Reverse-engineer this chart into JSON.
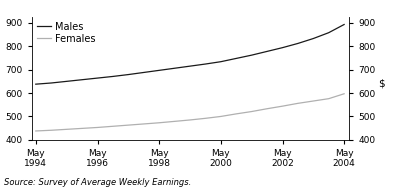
{
  "title": "",
  "ylabel_right": "$",
  "source": "Source: Survey of Average Weekly Earnings.",
  "xlim_start": 1994.2,
  "xlim_end": 2004.5,
  "ylim": [
    400,
    925
  ],
  "yticks": [
    400,
    500,
    600,
    700,
    800,
    900
  ],
  "xtick_years": [
    1994,
    1996,
    1998,
    2000,
    2002,
    2004
  ],
  "males_color": "#1a1a1a",
  "females_color": "#b0b0b0",
  "males_data": [
    [
      1994.33,
      638
    ],
    [
      1994.83,
      643
    ],
    [
      1995.33,
      650
    ],
    [
      1995.83,
      657
    ],
    [
      1996.33,
      664
    ],
    [
      1996.83,
      671
    ],
    [
      1997.33,
      679
    ],
    [
      1997.83,
      688
    ],
    [
      1998.33,
      697
    ],
    [
      1998.83,
      706
    ],
    [
      1999.33,
      715
    ],
    [
      1999.83,
      724
    ],
    [
      2000.33,
      734
    ],
    [
      2000.83,
      748
    ],
    [
      2001.33,
      762
    ],
    [
      2001.83,
      778
    ],
    [
      2002.33,
      794
    ],
    [
      2002.83,
      812
    ],
    [
      2003.33,
      833
    ],
    [
      2003.83,
      858
    ],
    [
      2004.33,
      893
    ]
  ],
  "females_data": [
    [
      1994.33,
      438
    ],
    [
      1994.83,
      441
    ],
    [
      1995.33,
      445
    ],
    [
      1995.83,
      449
    ],
    [
      1996.33,
      453
    ],
    [
      1996.83,
      458
    ],
    [
      1997.33,
      463
    ],
    [
      1997.83,
      468
    ],
    [
      1998.33,
      473
    ],
    [
      1998.83,
      479
    ],
    [
      1999.33,
      485
    ],
    [
      1999.83,
      492
    ],
    [
      2000.33,
      500
    ],
    [
      2000.83,
      511
    ],
    [
      2001.33,
      521
    ],
    [
      2001.83,
      533
    ],
    [
      2002.33,
      544
    ],
    [
      2002.83,
      556
    ],
    [
      2003.33,
      566
    ],
    [
      2003.83,
      576
    ],
    [
      2004.33,
      597
    ]
  ],
  "legend_males": "Males",
  "legend_females": "Females",
  "background_color": "#ffffff",
  "line_width": 0.9,
  "font_size_ticks": 6.5,
  "font_size_source": 6,
  "font_size_legend": 7,
  "font_size_ylabel": 7.5
}
